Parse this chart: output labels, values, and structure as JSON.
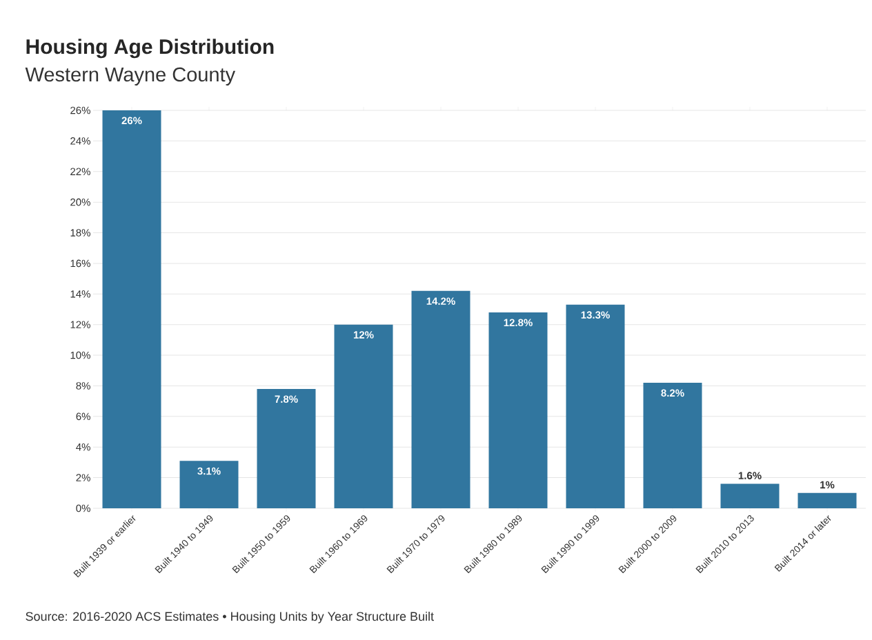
{
  "chart_data": {
    "type": "bar",
    "title": "Housing Age Distribution",
    "subtitle": "Western Wayne County",
    "categories": [
      "Built 1939 or earlier",
      "Built 1940 to 1949",
      "Built 1950 to 1959",
      "Built 1960 to 1969",
      "Built 1970 to 1979",
      "Built 1980 to 1989",
      "Built 1990 to 1999",
      "Built 2000 to 2009",
      "Built 2010 to 2013",
      "Built 2014 or later"
    ],
    "values": [
      26,
      3.1,
      7.8,
      12,
      14.2,
      12.8,
      13.3,
      8.2,
      1.6,
      1
    ],
    "value_labels": [
      "26%",
      "3.1%",
      "7.8%",
      "12%",
      "14.2%",
      "12.8%",
      "13.3%",
      "8.2%",
      "1.6%",
      "1%"
    ],
    "color": "#31769f",
    "ylim": [
      0,
      26
    ],
    "yticks": [
      {
        "value": 0,
        "label": "0%"
      },
      {
        "value": 2,
        "label": "2%"
      },
      {
        "value": 4,
        "label": "4%"
      },
      {
        "value": 6,
        "label": "6%"
      },
      {
        "value": 8,
        "label": "8%"
      },
      {
        "value": 10,
        "label": "10%"
      },
      {
        "value": 12,
        "label": "12%"
      },
      {
        "value": 14,
        "label": "14%"
      },
      {
        "value": 16,
        "label": "16%"
      },
      {
        "value": 18,
        "label": "18%"
      },
      {
        "value": 20,
        "label": "20%"
      },
      {
        "value": 22,
        "label": "22%"
      },
      {
        "value": 24,
        "label": "24%"
      },
      {
        "value": 26,
        "label": "26%"
      }
    ],
    "grid": "y",
    "annotations": [
      "Source: 2016-2020 ACS Estimates • Housing Units by Year Structure Built"
    ]
  }
}
